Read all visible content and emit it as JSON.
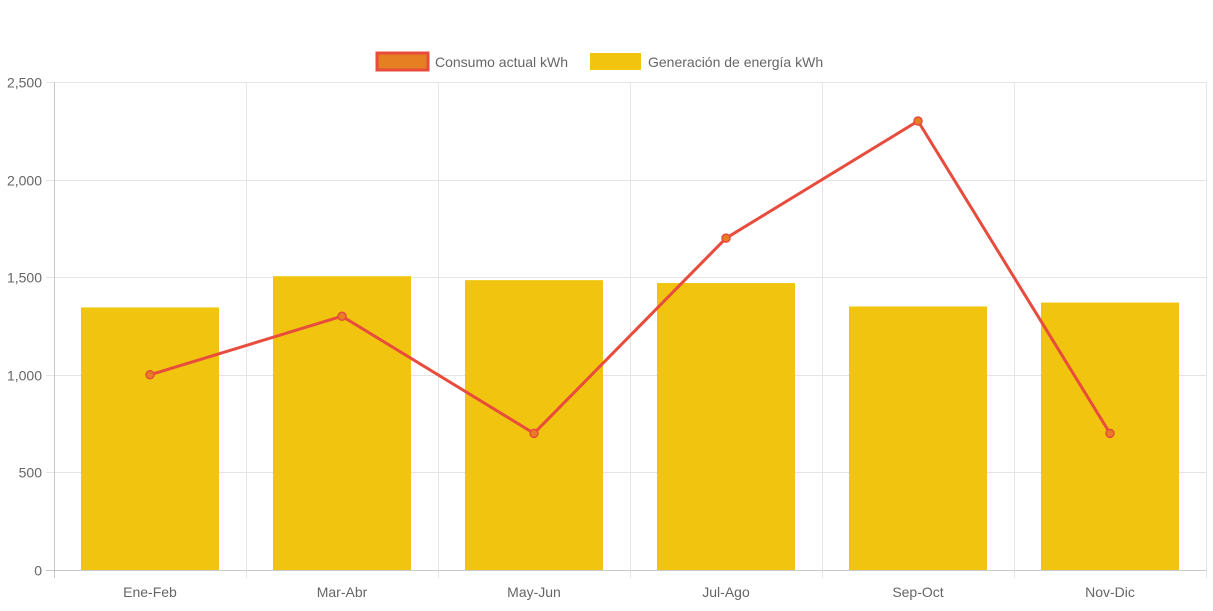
{
  "chart_data": {
    "type": "bar",
    "categories": [
      "Ene-Feb",
      "Mar-Abr",
      "May-Jun",
      "Jul-Ago",
      "Sep-Oct",
      "Nov-Dic"
    ],
    "series": [
      {
        "name": "Consumo actual kWh",
        "type": "line",
        "values": [
          1000,
          1300,
          700,
          1700,
          2300,
          700
        ],
        "color": "#e74c3c",
        "fill_color": "#e67e22"
      },
      {
        "name": "Generación de energía kWh",
        "type": "bar",
        "values": [
          1345,
          1505,
          1485,
          1470,
          1350,
          1370
        ],
        "color": "#f1c40f"
      }
    ],
    "ylim": [
      0,
      2500
    ],
    "yticks": [
      0,
      500,
      1000,
      1500,
      2000,
      2500
    ],
    "ytick_labels": [
      "0",
      "500",
      "1,000",
      "1,500",
      "2,000",
      "2,500"
    ],
    "grid": true,
    "legend_position": "top-center"
  }
}
